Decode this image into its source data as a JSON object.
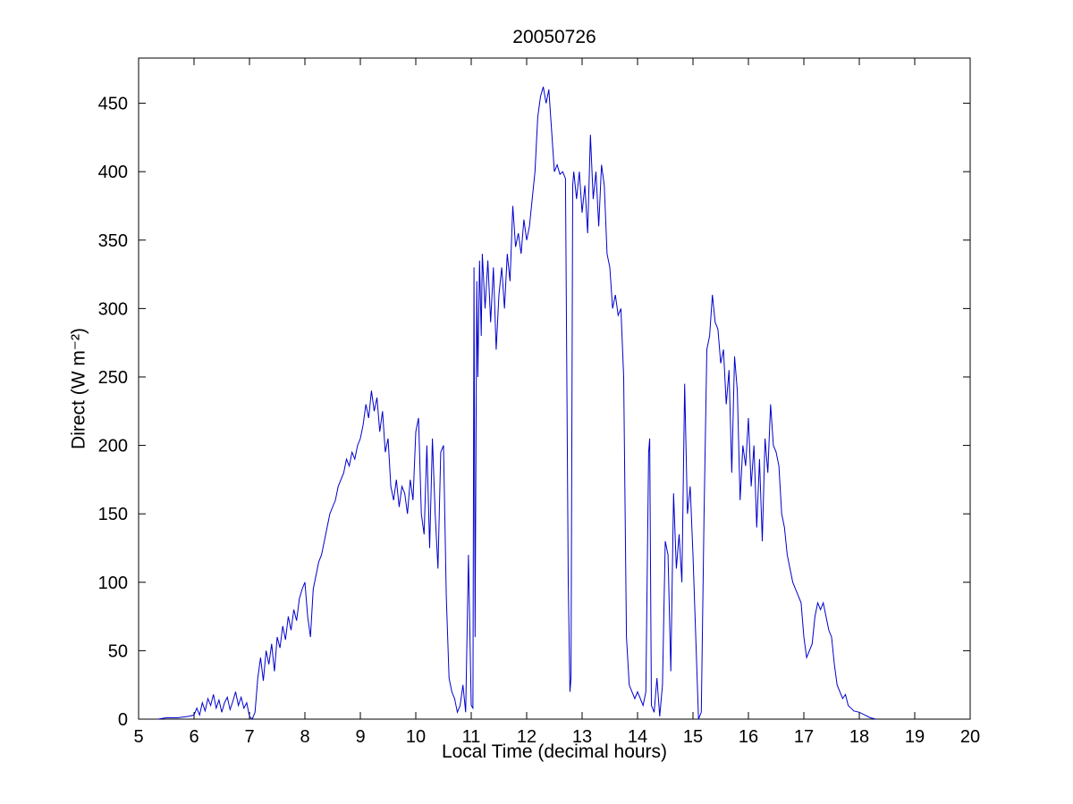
{
  "chart_data": {
    "type": "line",
    "title": "20050726",
    "xlabel": "Local Time (decimal hours)",
    "ylabel": "Direct (W m⁻²)",
    "xlim": [
      5,
      20
    ],
    "ylim": [
      0,
      483
    ],
    "xticks": [
      5,
      6,
      7,
      8,
      9,
      10,
      11,
      12,
      13,
      14,
      15,
      16,
      17,
      18,
      19,
      20
    ],
    "yticks": [
      0,
      50,
      100,
      150,
      200,
      250,
      300,
      350,
      400,
      450
    ],
    "grid": false,
    "legend": null,
    "line_color": "#0000CC",
    "axis_color": "#000000",
    "series": [
      {
        "name": "Direct",
        "points": [
          [
            5.35,
            0
          ],
          [
            5.5,
            1
          ],
          [
            5.7,
            1
          ],
          [
            5.9,
            2
          ],
          [
            6.0,
            3
          ],
          [
            6.05,
            8
          ],
          [
            6.1,
            3
          ],
          [
            6.15,
            12
          ],
          [
            6.2,
            6
          ],
          [
            6.25,
            15
          ],
          [
            6.3,
            10
          ],
          [
            6.35,
            18
          ],
          [
            6.4,
            8
          ],
          [
            6.45,
            14
          ],
          [
            6.5,
            5
          ],
          [
            6.55,
            12
          ],
          [
            6.6,
            16
          ],
          [
            6.65,
            7
          ],
          [
            6.7,
            13
          ],
          [
            6.75,
            20
          ],
          [
            6.8,
            10
          ],
          [
            6.85,
            16
          ],
          [
            6.9,
            8
          ],
          [
            6.95,
            12
          ],
          [
            7.0,
            2
          ],
          [
            7.05,
            0
          ],
          [
            7.1,
            5
          ],
          [
            7.15,
            30
          ],
          [
            7.2,
            45
          ],
          [
            7.25,
            28
          ],
          [
            7.3,
            50
          ],
          [
            7.35,
            40
          ],
          [
            7.4,
            55
          ],
          [
            7.45,
            35
          ],
          [
            7.5,
            60
          ],
          [
            7.55,
            52
          ],
          [
            7.6,
            68
          ],
          [
            7.65,
            58
          ],
          [
            7.7,
            75
          ],
          [
            7.75,
            65
          ],
          [
            7.8,
            80
          ],
          [
            7.85,
            72
          ],
          [
            7.9,
            88
          ],
          [
            7.95,
            95
          ],
          [
            8.0,
            100
          ],
          [
            8.05,
            75
          ],
          [
            8.1,
            60
          ],
          [
            8.15,
            95
          ],
          [
            8.2,
            105
          ],
          [
            8.25,
            115
          ],
          [
            8.3,
            120
          ],
          [
            8.35,
            130
          ],
          [
            8.4,
            140
          ],
          [
            8.45,
            150
          ],
          [
            8.5,
            155
          ],
          [
            8.55,
            160
          ],
          [
            8.6,
            170
          ],
          [
            8.65,
            175
          ],
          [
            8.7,
            180
          ],
          [
            8.75,
            190
          ],
          [
            8.8,
            185
          ],
          [
            8.85,
            195
          ],
          [
            8.9,
            190
          ],
          [
            8.95,
            200
          ],
          [
            9.0,
            205
          ],
          [
            9.05,
            215
          ],
          [
            9.1,
            230
          ],
          [
            9.15,
            220
          ],
          [
            9.2,
            240
          ],
          [
            9.25,
            225
          ],
          [
            9.3,
            235
          ],
          [
            9.35,
            210
          ],
          [
            9.4,
            225
          ],
          [
            9.45,
            195
          ],
          [
            9.5,
            205
          ],
          [
            9.55,
            170
          ],
          [
            9.6,
            160
          ],
          [
            9.65,
            175
          ],
          [
            9.7,
            155
          ],
          [
            9.75,
            170
          ],
          [
            9.8,
            165
          ],
          [
            9.85,
            150
          ],
          [
            9.9,
            175
          ],
          [
            9.95,
            160
          ],
          [
            10.0,
            210
          ],
          [
            10.05,
            220
          ],
          [
            10.1,
            150
          ],
          [
            10.15,
            135
          ],
          [
            10.2,
            200
          ],
          [
            10.25,
            125
          ],
          [
            10.3,
            205
          ],
          [
            10.35,
            150
          ],
          [
            10.4,
            110
          ],
          [
            10.45,
            195
          ],
          [
            10.5,
            200
          ],
          [
            10.55,
            90
          ],
          [
            10.6,
            30
          ],
          [
            10.65,
            20
          ],
          [
            10.7,
            15
          ],
          [
            10.75,
            5
          ],
          [
            10.8,
            10
          ],
          [
            10.85,
            25
          ],
          [
            10.9,
            5
          ],
          [
            10.95,
            120
          ],
          [
            11.0,
            10
          ],
          [
            11.03,
            8
          ],
          [
            11.05,
            330
          ],
          [
            11.07,
            60
          ],
          [
            11.1,
            320
          ],
          [
            11.12,
            250
          ],
          [
            11.15,
            335
          ],
          [
            11.18,
            280
          ],
          [
            11.2,
            340
          ],
          [
            11.25,
            300
          ],
          [
            11.3,
            335
          ],
          [
            11.35,
            290
          ],
          [
            11.4,
            330
          ],
          [
            11.45,
            270
          ],
          [
            11.5,
            310
          ],
          [
            11.55,
            330
          ],
          [
            11.6,
            300
          ],
          [
            11.65,
            340
          ],
          [
            11.7,
            320
          ],
          [
            11.75,
            375
          ],
          [
            11.8,
            345
          ],
          [
            11.85,
            355
          ],
          [
            11.9,
            340
          ],
          [
            11.95,
            365
          ],
          [
            12.0,
            350
          ],
          [
            12.05,
            360
          ],
          [
            12.1,
            380
          ],
          [
            12.15,
            400
          ],
          [
            12.2,
            440
          ],
          [
            12.25,
            455
          ],
          [
            12.3,
            462
          ],
          [
            12.35,
            450
          ],
          [
            12.4,
            460
          ],
          [
            12.45,
            430
          ],
          [
            12.5,
            400
          ],
          [
            12.55,
            405
          ],
          [
            12.6,
            398
          ],
          [
            12.65,
            400
          ],
          [
            12.7,
            395
          ],
          [
            12.75,
            100
          ],
          [
            12.78,
            20
          ],
          [
            12.8,
            30
          ],
          [
            12.83,
            390
          ],
          [
            12.85,
            400
          ],
          [
            12.9,
            380
          ],
          [
            12.95,
            400
          ],
          [
            13.0,
            370
          ],
          [
            13.05,
            390
          ],
          [
            13.1,
            355
          ],
          [
            13.15,
            427
          ],
          [
            13.2,
            380
          ],
          [
            13.25,
            400
          ],
          [
            13.3,
            360
          ],
          [
            13.35,
            405
          ],
          [
            13.4,
            390
          ],
          [
            13.45,
            340
          ],
          [
            13.5,
            330
          ],
          [
            13.55,
            300
          ],
          [
            13.6,
            310
          ],
          [
            13.65,
            295
          ],
          [
            13.7,
            300
          ],
          [
            13.75,
            250
          ],
          [
            13.8,
            60
          ],
          [
            13.85,
            25
          ],
          [
            13.9,
            20
          ],
          [
            13.95,
            15
          ],
          [
            14.0,
            20
          ],
          [
            14.05,
            15
          ],
          [
            14.1,
            10
          ],
          [
            14.15,
            20
          ],
          [
            14.2,
            195
          ],
          [
            14.22,
            205
          ],
          [
            14.25,
            10
          ],
          [
            14.3,
            5
          ],
          [
            14.35,
            30
          ],
          [
            14.4,
            2
          ],
          [
            14.45,
            25
          ],
          [
            14.5,
            130
          ],
          [
            14.55,
            120
          ],
          [
            14.6,
            35
          ],
          [
            14.65,
            165
          ],
          [
            14.7,
            110
          ],
          [
            14.75,
            135
          ],
          [
            14.8,
            100
          ],
          [
            14.85,
            245
          ],
          [
            14.9,
            150
          ],
          [
            14.95,
            170
          ],
          [
            15.0,
            120
          ],
          [
            15.05,
            60
          ],
          [
            15.1,
            0
          ],
          [
            15.15,
            5
          ],
          [
            15.2,
            150
          ],
          [
            15.25,
            270
          ],
          [
            15.3,
            280
          ],
          [
            15.35,
            310
          ],
          [
            15.4,
            290
          ],
          [
            15.45,
            285
          ],
          [
            15.5,
            260
          ],
          [
            15.55,
            270
          ],
          [
            15.6,
            230
          ],
          [
            15.65,
            255
          ],
          [
            15.7,
            180
          ],
          [
            15.75,
            265
          ],
          [
            15.8,
            240
          ],
          [
            15.85,
            160
          ],
          [
            15.9,
            200
          ],
          [
            15.95,
            185
          ],
          [
            16.0,
            220
          ],
          [
            16.05,
            170
          ],
          [
            16.1,
            200
          ],
          [
            16.15,
            140
          ],
          [
            16.2,
            190
          ],
          [
            16.25,
            130
          ],
          [
            16.3,
            205
          ],
          [
            16.35,
            180
          ],
          [
            16.4,
            230
          ],
          [
            16.45,
            200
          ],
          [
            16.5,
            195
          ],
          [
            16.55,
            185
          ],
          [
            16.6,
            150
          ],
          [
            16.65,
            140
          ],
          [
            16.7,
            120
          ],
          [
            16.75,
            110
          ],
          [
            16.8,
            100
          ],
          [
            16.85,
            95
          ],
          [
            16.9,
            90
          ],
          [
            16.95,
            85
          ],
          [
            17.0,
            60
          ],
          [
            17.05,
            45
          ],
          [
            17.1,
            50
          ],
          [
            17.15,
            55
          ],
          [
            17.2,
            75
          ],
          [
            17.25,
            85
          ],
          [
            17.3,
            80
          ],
          [
            17.35,
            85
          ],
          [
            17.4,
            75
          ],
          [
            17.45,
            65
          ],
          [
            17.5,
            60
          ],
          [
            17.55,
            40
          ],
          [
            17.6,
            25
          ],
          [
            17.65,
            20
          ],
          [
            17.7,
            15
          ],
          [
            17.75,
            18
          ],
          [
            17.8,
            10
          ],
          [
            17.85,
            8
          ],
          [
            17.9,
            6
          ],
          [
            18.0,
            5
          ],
          [
            18.1,
            3
          ],
          [
            18.2,
            1
          ],
          [
            18.3,
            0
          ]
        ]
      }
    ]
  }
}
